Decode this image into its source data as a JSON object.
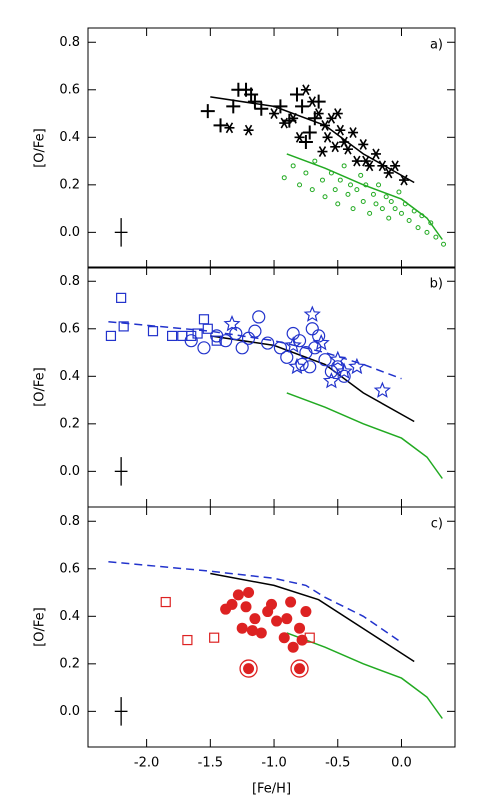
{
  "chart_data": [
    {
      "type": "scatter",
      "panel_label": "a)",
      "ylabel": "[O/Fe]",
      "xlim": [
        -2.46,
        0.42
      ],
      "ylim": [
        -0.15,
        0.86
      ],
      "xticks": [
        {
          "value": -2,
          "label": "-2.0"
        },
        -1.5,
        {
          "value": -1,
          "label": "-1.0"
        },
        -0.5,
        {
          "value": 0,
          "label": "0.0"
        }
      ],
      "yticks": [
        {
          "value": 0,
          "label": "0.0"
        },
        0.2,
        0.4,
        0.6,
        0.8
      ],
      "series": [
        {
          "marker": "plus",
          "color": "#000000",
          "x": [
            -1.52,
            -1.42,
            -1.32,
            -1.28,
            -1.22,
            -1.18,
            -1.15,
            -1.1,
            -0.95,
            -0.88,
            -0.82,
            -0.78,
            -0.72,
            -0.68,
            -0.65,
            -0.75
          ],
          "values": [
            0.51,
            0.45,
            0.53,
            0.6,
            0.6,
            0.58,
            0.55,
            0.52,
            0.53,
            0.47,
            0.58,
            0.53,
            0.42,
            0.48,
            0.55,
            0.38
          ]
        },
        {
          "marker": "asterisk",
          "color": "#000000",
          "x": [
            -1.35,
            -1.2,
            -1.0,
            -0.92,
            -0.85,
            -0.75,
            -0.7,
            -0.65,
            -0.6,
            -0.58,
            -0.55,
            -0.5,
            -0.48,
            -0.45,
            -0.42,
            -0.38,
            -0.35,
            -0.3,
            -0.28,
            -0.25,
            -0.2,
            -0.15,
            -0.1,
            -0.05,
            0.02,
            -0.62,
            -0.52,
            -0.8
          ],
          "values": [
            0.44,
            0.43,
            0.5,
            0.46,
            0.48,
            0.6,
            0.55,
            0.5,
            0.45,
            0.4,
            0.48,
            0.5,
            0.43,
            0.38,
            0.35,
            0.42,
            0.3,
            0.37,
            0.3,
            0.28,
            0.33,
            0.28,
            0.25,
            0.28,
            0.22,
            0.34,
            0.36,
            0.4
          ]
        },
        {
          "marker": "small-circle",
          "color": "#22aa22",
          "x": [
            -0.92,
            -0.85,
            -0.8,
            -0.75,
            -0.7,
            -0.68,
            -0.62,
            -0.6,
            -0.55,
            -0.52,
            -0.5,
            -0.48,
            -0.45,
            -0.42,
            -0.4,
            -0.38,
            -0.35,
            -0.32,
            -0.3,
            -0.28,
            -0.25,
            -0.22,
            -0.2,
            -0.18,
            -0.15,
            -0.12,
            -0.1,
            -0.08,
            -0.05,
            -0.02,
            0.0,
            0.03,
            0.06,
            0.1,
            0.13,
            0.16,
            0.2,
            0.23,
            0.27,
            0.33
          ],
          "values": [
            0.23,
            0.28,
            0.2,
            0.25,
            0.18,
            0.3,
            0.22,
            0.15,
            0.25,
            0.18,
            0.12,
            0.22,
            0.28,
            0.16,
            0.2,
            0.1,
            0.18,
            0.24,
            0.13,
            0.2,
            0.08,
            0.16,
            0.12,
            0.2,
            0.1,
            0.15,
            0.06,
            0.13,
            0.1,
            0.17,
            0.08,
            0.12,
            0.05,
            0.09,
            0.02,
            0.07,
            0.0,
            0.04,
            -0.02,
            -0.05
          ]
        }
      ],
      "lines": [
        {
          "color": "#000000",
          "dash": false,
          "x": [
            -1.5,
            -1.0,
            -0.6,
            -0.3,
            0.1
          ],
          "values": [
            0.57,
            0.53,
            0.45,
            0.33,
            0.21
          ]
        },
        {
          "color": "#22aa22",
          "dash": false,
          "x": [
            -0.9,
            -0.6,
            -0.3,
            0.0,
            0.2,
            0.32
          ],
          "values": [
            0.33,
            0.27,
            0.2,
            0.14,
            0.06,
            -0.03
          ]
        }
      ],
      "error_bar": {
        "x": -2.2,
        "y": 0,
        "xerr": 0.05,
        "yerr": 0.06
      }
    },
    {
      "type": "scatter",
      "panel_label": "b)",
      "ylabel": "[O/Fe]",
      "xlim": [
        -2.46,
        0.42
      ],
      "ylim": [
        -0.15,
        0.86
      ],
      "xticks": [
        {
          "value": -2,
          "label": "-2.0"
        },
        -1.5,
        {
          "value": -1,
          "label": "-1.0"
        },
        -0.5,
        {
          "value": 0,
          "label": "0.0"
        }
      ],
      "yticks": [
        {
          "value": 0,
          "label": "0.0"
        },
        0.2,
        0.4,
        0.6,
        0.8
      ],
      "series": [
        {
          "marker": "square",
          "color": "#2233cc",
          "x": [
            -2.28,
            -2.2,
            -2.18,
            -1.95,
            -1.8,
            -1.72,
            -1.65,
            -1.6,
            -1.55,
            -1.52,
            -1.45
          ],
          "values": [
            0.57,
            0.73,
            0.61,
            0.59,
            0.57,
            0.57,
            0.57,
            0.58,
            0.64,
            0.6,
            0.55
          ]
        },
        {
          "marker": "open-circle",
          "color": "#2233cc",
          "x": [
            -1.65,
            -1.55,
            -1.45,
            -1.38,
            -1.3,
            -1.25,
            -1.2,
            -1.15,
            -1.12,
            -1.05,
            -0.95,
            -0.9,
            -0.85,
            -0.8,
            -0.75,
            -0.72,
            -0.7,
            -0.65,
            -0.6,
            -0.55,
            -0.5,
            -0.45,
            -0.68,
            -0.78
          ],
          "values": [
            0.55,
            0.52,
            0.57,
            0.55,
            0.58,
            0.52,
            0.56,
            0.59,
            0.65,
            0.54,
            0.52,
            0.48,
            0.58,
            0.55,
            0.5,
            0.44,
            0.6,
            0.57,
            0.47,
            0.42,
            0.44,
            0.4,
            0.52,
            0.45
          ]
        },
        {
          "marker": "star",
          "color": "#2233cc",
          "x": [
            -1.33,
            -0.85,
            -0.82,
            -0.7,
            -0.63,
            -0.55,
            -0.5,
            -0.45,
            -0.35,
            -0.15
          ],
          "values": [
            0.62,
            0.53,
            0.44,
            0.66,
            0.54,
            0.38,
            0.47,
            0.42,
            0.44,
            0.34
          ]
        }
      ],
      "lines": [
        {
          "color": "#2233cc",
          "dash": true,
          "x": [
            -2.3,
            -1.5,
            -1.0,
            -0.6,
            -0.3,
            0.0
          ],
          "values": [
            0.63,
            0.59,
            0.55,
            0.5,
            0.45,
            0.39
          ]
        },
        {
          "color": "#000000",
          "dash": false,
          "x": [
            -1.5,
            -1.0,
            -0.6,
            -0.3,
            0.1
          ],
          "values": [
            0.57,
            0.53,
            0.45,
            0.33,
            0.21
          ]
        },
        {
          "color": "#22aa22",
          "dash": false,
          "x": [
            -0.9,
            -0.6,
            -0.3,
            0.0,
            0.2,
            0.32
          ],
          "values": [
            0.33,
            0.27,
            0.2,
            0.14,
            0.06,
            -0.03
          ]
        }
      ],
      "error_bar": {
        "x": -2.2,
        "y": 0,
        "xerr": 0.05,
        "yerr": 0.06
      }
    },
    {
      "type": "scatter",
      "panel_label": "c)",
      "ylabel": "[O/Fe]",
      "xlabel": "[Fe/H]",
      "xlim": [
        -2.46,
        0.42
      ],
      "ylim": [
        -0.15,
        0.86
      ],
      "xticks": [
        {
          "value": -2,
          "label": "-2.0"
        },
        -1.5,
        {
          "value": -1,
          "label": "-1.0"
        },
        -0.5,
        {
          "value": 0,
          "label": "0.0"
        }
      ],
      "yticks": [
        {
          "value": 0,
          "label": "0.0"
        },
        0.2,
        0.4,
        0.6,
        0.8
      ],
      "series": [
        {
          "marker": "square",
          "color": "#dd2222",
          "x": [
            -1.85,
            -1.68,
            -1.47,
            -0.72
          ],
          "values": [
            0.46,
            0.3,
            0.31,
            0.31
          ]
        },
        {
          "marker": "filled-circle",
          "color": "#dd2222",
          "x": [
            -1.38,
            -1.33,
            -1.28,
            -1.25,
            -1.2,
            -1.15,
            -1.1,
            -1.05,
            -1.02,
            -0.98,
            -0.9,
            -0.87,
            -0.85,
            -0.8,
            -0.78,
            -0.75,
            -1.22,
            -1.17,
            -0.92,
            -1.2,
            -0.8
          ],
          "values": [
            0.43,
            0.45,
            0.49,
            0.35,
            0.5,
            0.39,
            0.33,
            0.42,
            0.45,
            0.38,
            0.39,
            0.46,
            0.27,
            0.35,
            0.3,
            0.42,
            0.44,
            0.34,
            0.31,
            0.18,
            0.18
          ]
        },
        {
          "marker": "ring",
          "color": "#dd2222",
          "x": [
            -1.2,
            -0.8
          ],
          "values": [
            0.18,
            0.18
          ]
        }
      ],
      "lines": [
        {
          "color": "#2233cc",
          "dash": true,
          "x": [
            -2.3,
            -1.5,
            -1.0,
            -0.75,
            -0.6,
            -0.3,
            0.0
          ],
          "values": [
            0.63,
            0.59,
            0.56,
            0.53,
            0.48,
            0.4,
            0.29
          ]
        },
        {
          "color": "#000000",
          "dash": false,
          "x": [
            -1.5,
            -1.0,
            -0.65,
            0.1
          ],
          "values": [
            0.58,
            0.53,
            0.47,
            0.21
          ]
        },
        {
          "color": "#22aa22",
          "dash": false,
          "x": [
            -0.9,
            -0.6,
            -0.3,
            0.0,
            0.2,
            0.32
          ],
          "values": [
            0.33,
            0.27,
            0.2,
            0.14,
            0.06,
            -0.03
          ]
        }
      ],
      "error_bar": {
        "x": -2.2,
        "y": 0,
        "xerr": 0.05,
        "yerr": 0.06
      }
    }
  ]
}
